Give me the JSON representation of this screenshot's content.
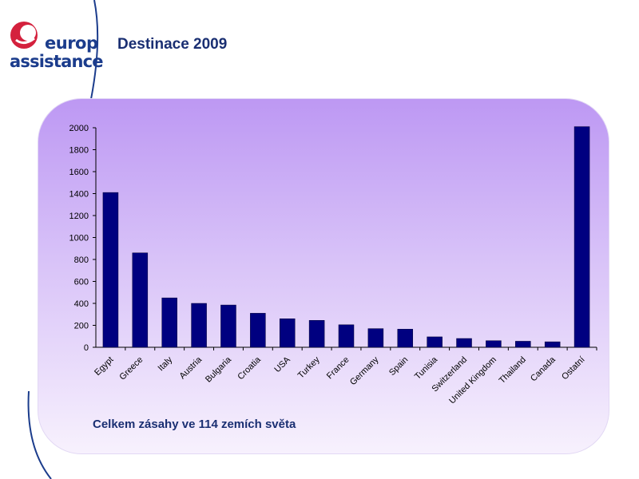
{
  "brand": {
    "line1": "europ",
    "line2": "assistance"
  },
  "title": "Destinace 2009",
  "summary": "Celkem zásahy ve 114 zemích světa",
  "colors": {
    "bar": "#000080",
    "title": "#1a2f72",
    "logo_red": "#d4213d",
    "logo_blue": "#1b3c8c"
  },
  "chart_data": {
    "type": "bar",
    "categories": [
      "Egypt",
      "Greece",
      "Italy",
      "Austria",
      "Bulgaria",
      "Croatia",
      "USA",
      "Turkey",
      "France",
      "Germany",
      "Spain",
      "Tunisia",
      "Switzerland",
      "United Kingdom",
      "Thailand",
      "Canada",
      "Ostatní"
    ],
    "values": [
      1410,
      860,
      450,
      400,
      385,
      310,
      260,
      245,
      205,
      170,
      165,
      95,
      80,
      60,
      55,
      50,
      2010
    ],
    "yticks": [
      "0",
      "200",
      "400",
      "600",
      "800",
      "1000",
      "1200",
      "1400",
      "1600",
      "1800",
      "2000"
    ],
    "ylim": [
      0,
      2000
    ],
    "grid": false,
    "title": "",
    "xlabel": "",
    "ylabel": ""
  }
}
